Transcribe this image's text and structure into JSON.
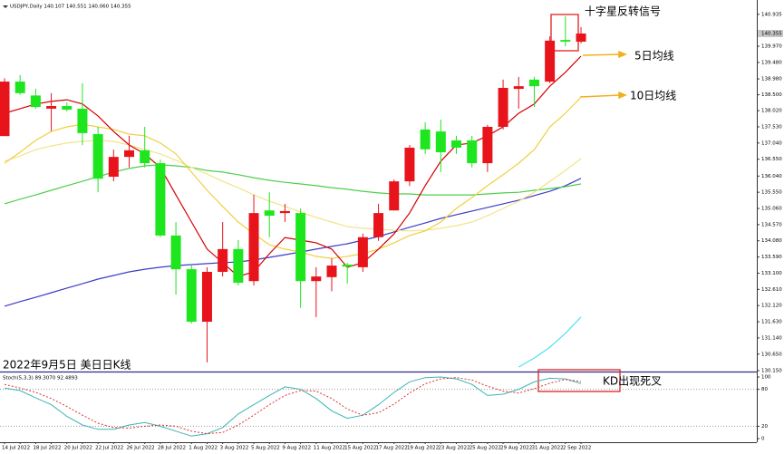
{
  "chart_data": [
    {
      "type": "candlestick",
      "header": "USDJPY,Daily 140.107 140.551 140.060 140.355",
      "categories": [
        "14 Jul 2022",
        null,
        "18 Jul 2022",
        null,
        "20 Jul 2022",
        null,
        "22 Jul 2022",
        null,
        "26 Jul 2022",
        null,
        "28 Jul 2022",
        null,
        "1 Aug 2022",
        null,
        "3 Aug 2022",
        null,
        "5 Aug 2022",
        null,
        "9 Aug 2022",
        null,
        "11 Aug 2022",
        null,
        "15 Aug 2022",
        null,
        "17 Aug 2022",
        null,
        "19 Aug 2022",
        null,
        "23 Aug 2022",
        null,
        "25 Aug 2022",
        null,
        "29 Aug 2022",
        null,
        "31 Aug 2022",
        null,
        "2 Sep 2022",
        null
      ],
      "open": [
        137.25,
        138.9,
        138.48,
        138.08,
        138.16,
        138.08,
        137.31,
        136.02,
        136.62,
        136.82,
        136.43,
        134.24,
        133.22,
        131.63,
        133.14,
        133.83,
        132.86,
        135.0,
        134.92,
        134.92,
        132.86,
        132.98,
        133.36,
        133.28,
        134.19,
        135.0,
        135.88,
        137.45,
        137.39,
        137.12,
        137.12,
        136.43,
        137.53,
        138.68,
        138.96,
        138.9,
        140.16,
        140.107
      ],
      "high": [
        139.0,
        139.1,
        138.68,
        138.55,
        138.27,
        138.85,
        137.53,
        136.84,
        137.26,
        137.53,
        136.54,
        134.65,
        133.36,
        133.28,
        134.65,
        134.1,
        135.47,
        135.55,
        135.2,
        135.06,
        133.28,
        133.55,
        133.42,
        134.3,
        135.2,
        135.94,
        136.98,
        137.67,
        137.75,
        137.26,
        137.26,
        137.59,
        138.96,
        139.04,
        139.04,
        140.27,
        140.88,
        140.551
      ],
      "low": [
        137.25,
        138.5,
        138.08,
        137.4,
        138.0,
        136.98,
        135.55,
        135.88,
        136.3,
        136.3,
        134.19,
        132.45,
        131.58,
        130.4,
        133.0,
        132.73,
        132.73,
        134.19,
        134.65,
        132.05,
        131.77,
        132.55,
        132.78,
        133.14,
        134.08,
        135.0,
        135.74,
        136.71,
        136.16,
        136.71,
        136.3,
        136.16,
        137.45,
        138.08,
        138.13,
        138.85,
        139.97,
        140.06
      ],
      "close": [
        138.9,
        138.55,
        138.13,
        138.16,
        138.05,
        137.34,
        135.96,
        136.62,
        136.82,
        136.43,
        134.24,
        133.22,
        131.63,
        133.14,
        133.83,
        132.81,
        134.92,
        134.84,
        134.98,
        132.86,
        133.0,
        133.33,
        133.3,
        134.19,
        134.92,
        135.88,
        136.9,
        136.85,
        136.76,
        136.9,
        136.43,
        137.53,
        138.71,
        138.76,
        138.76,
        140.14,
        140.11,
        140.355
      ],
      "up_color": "#e8141c",
      "down_color": "#1ee61e",
      "ylim": [
        130.15,
        141.37
      ],
      "yticks": [
        140.935,
        {
          "value": 139.97,
          "label": "139.970"
        },
        {
          "value": 139.48,
          "label": "139.480"
        },
        {
          "value": 138.98,
          "label": "138.980"
        },
        {
          "value": 138.5,
          "label": "138.500"
        },
        {
          "value": 138.02,
          "label": "138.020"
        },
        {
          "value": 137.53,
          "label": "137.530"
        },
        {
          "value": 137.04,
          "label": "137.040"
        },
        {
          "value": 136.55,
          "label": "136.550"
        },
        {
          "value": 136.04,
          "label": "136.040"
        },
        {
          "value": 135.55,
          "label": "135.550"
        },
        {
          "value": 135.06,
          "label": "135.060"
        },
        {
          "value": 134.57,
          "label": "134.570"
        },
        {
          "value": 134.08,
          "label": "134.080"
        },
        {
          "value": 133.59,
          "label": "133.590"
        },
        {
          "value": 133.1,
          "label": "133.100"
        },
        {
          "value": 132.61,
          "label": "132.610"
        },
        {
          "value": 132.12,
          "label": "132.120"
        },
        {
          "value": 131.63,
          "label": "131.630"
        },
        {
          "value": 131.14,
          "label": "131.140"
        },
        {
          "value": 130.65,
          "label": "130.650"
        },
        {
          "value": 130.15,
          "label": "130.150"
        }
      ],
      "price_marker": 140.355,
      "overlays": [
        {
          "color": "#3c3cc8",
          "values": [
            132.1,
            132.24,
            132.37,
            132.51,
            132.65,
            132.78,
            132.92,
            133.03,
            133.14,
            133.22,
            133.28,
            133.33,
            133.36,
            133.39,
            133.42,
            133.44,
            133.5,
            133.58,
            133.66,
            133.74,
            133.83,
            133.91,
            133.99,
            134.1,
            134.21,
            134.35,
            134.49,
            134.62,
            134.76,
            134.87,
            134.98,
            135.09,
            135.2,
            135.31,
            135.45,
            135.58,
            135.75,
            135.97
          ]
        },
        {
          "color": "#4ccf4c",
          "values": [
            135.2,
            135.34,
            135.47,
            135.61,
            135.75,
            135.88,
            136.02,
            136.16,
            136.27,
            136.35,
            136.38,
            136.35,
            136.3,
            136.21,
            136.16,
            136.08,
            135.99,
            135.91,
            135.85,
            135.8,
            135.75,
            135.69,
            135.64,
            135.58,
            135.53,
            135.5,
            135.5,
            135.47,
            135.47,
            135.47,
            135.47,
            135.5,
            135.53,
            135.55,
            135.61,
            135.66,
            135.72,
            135.8
          ]
        },
        {
          "color": "#f3e38a",
          "values": [
            136.49,
            136.65,
            136.84,
            136.95,
            137.04,
            137.09,
            137.12,
            137.09,
            136.98,
            136.84,
            136.71,
            136.52,
            136.3,
            136.1,
            135.88,
            135.69,
            135.47,
            135.28,
            135.12,
            134.95,
            134.79,
            134.65,
            134.51,
            134.46,
            134.43,
            134.4,
            134.38,
            134.4,
            134.46,
            134.54,
            134.65,
            134.84,
            135.06,
            135.28,
            135.55,
            135.88,
            136.21,
            136.57
          ]
        },
        {
          "color": "#f0d040",
          "values": [
            136.43,
            136.76,
            137.12,
            137.39,
            137.53,
            137.61,
            137.53,
            137.45,
            137.31,
            137.26,
            137.04,
            136.71,
            136.16,
            135.61,
            135.12,
            134.65,
            134.29,
            133.96,
            133.83,
            133.74,
            133.61,
            133.55,
            133.61,
            133.69,
            133.83,
            134.02,
            134.24,
            134.38,
            134.65,
            135.06,
            135.39,
            135.75,
            136.08,
            136.43,
            136.84,
            137.53,
            137.94,
            138.43
          ]
        },
        {
          "color": "#50e0f0",
          "values": [
            null,
            null,
            null,
            null,
            null,
            null,
            null,
            null,
            null,
            null,
            null,
            null,
            null,
            null,
            null,
            null,
            null,
            null,
            null,
            null,
            null,
            null,
            null,
            null,
            null,
            null,
            null,
            null,
            null,
            null,
            null,
            null,
            null,
            130.26,
            130.53,
            130.86,
            131.28,
            131.77
          ]
        },
        {
          "color": "#d40000",
          "values": [
            137.94,
            138.08,
            138.22,
            138.3,
            138.35,
            138.22,
            137.86,
            137.39,
            136.98,
            136.71,
            136.3,
            135.47,
            134.65,
            133.83,
            133.42,
            133.0,
            133.14,
            133.69,
            134.18,
            134.1,
            134.02,
            133.83,
            133.28,
            133.42,
            133.83,
            134.29,
            134.92,
            135.75,
            136.49,
            136.98,
            137.04,
            137.26,
            137.53,
            137.94,
            138.22,
            138.76,
            139.18,
            139.67
          ]
        }
      ],
      "annotations": [
        "十字星反转信号",
        "5日均线",
        "10日均线",
        "2022年9月5日 美日日K线",
        "KD出现死叉"
      ]
    },
    {
      "type": "line",
      "title": "Stoch(5,3,3) 89.3070 92.4893",
      "series": [
        {
          "color": "#3cb4b4",
          "values": [
            82,
            78,
            66,
            55,
            36,
            22,
            15,
            15,
            22,
            26,
            20,
            12,
            4,
            8,
            18,
            40,
            55,
            70,
            84,
            80,
            65,
            45,
            33,
            38,
            55,
            75,
            92,
            99,
            100,
            97,
            88,
            70,
            72,
            80,
            92,
            98,
            97,
            89.307
          ]
        },
        {
          "color": "#e03030",
          "dash": true,
          "values": [
            88,
            82,
            75,
            65,
            52,
            38,
            25,
            18,
            17,
            20,
            22,
            20,
            12,
            8,
            10,
            22,
            38,
            55,
            70,
            78,
            77,
            65,
            48,
            38,
            42,
            56,
            74,
            89,
            97,
            99,
            95,
            85,
            77,
            74,
            81,
            90,
            96,
            92.4893
          ]
        }
      ],
      "ylim": [
        -5.9,
        105.9
      ],
      "yticks": [
        0,
        20,
        80,
        100
      ],
      "levels": [
        20,
        80
      ]
    }
  ]
}
